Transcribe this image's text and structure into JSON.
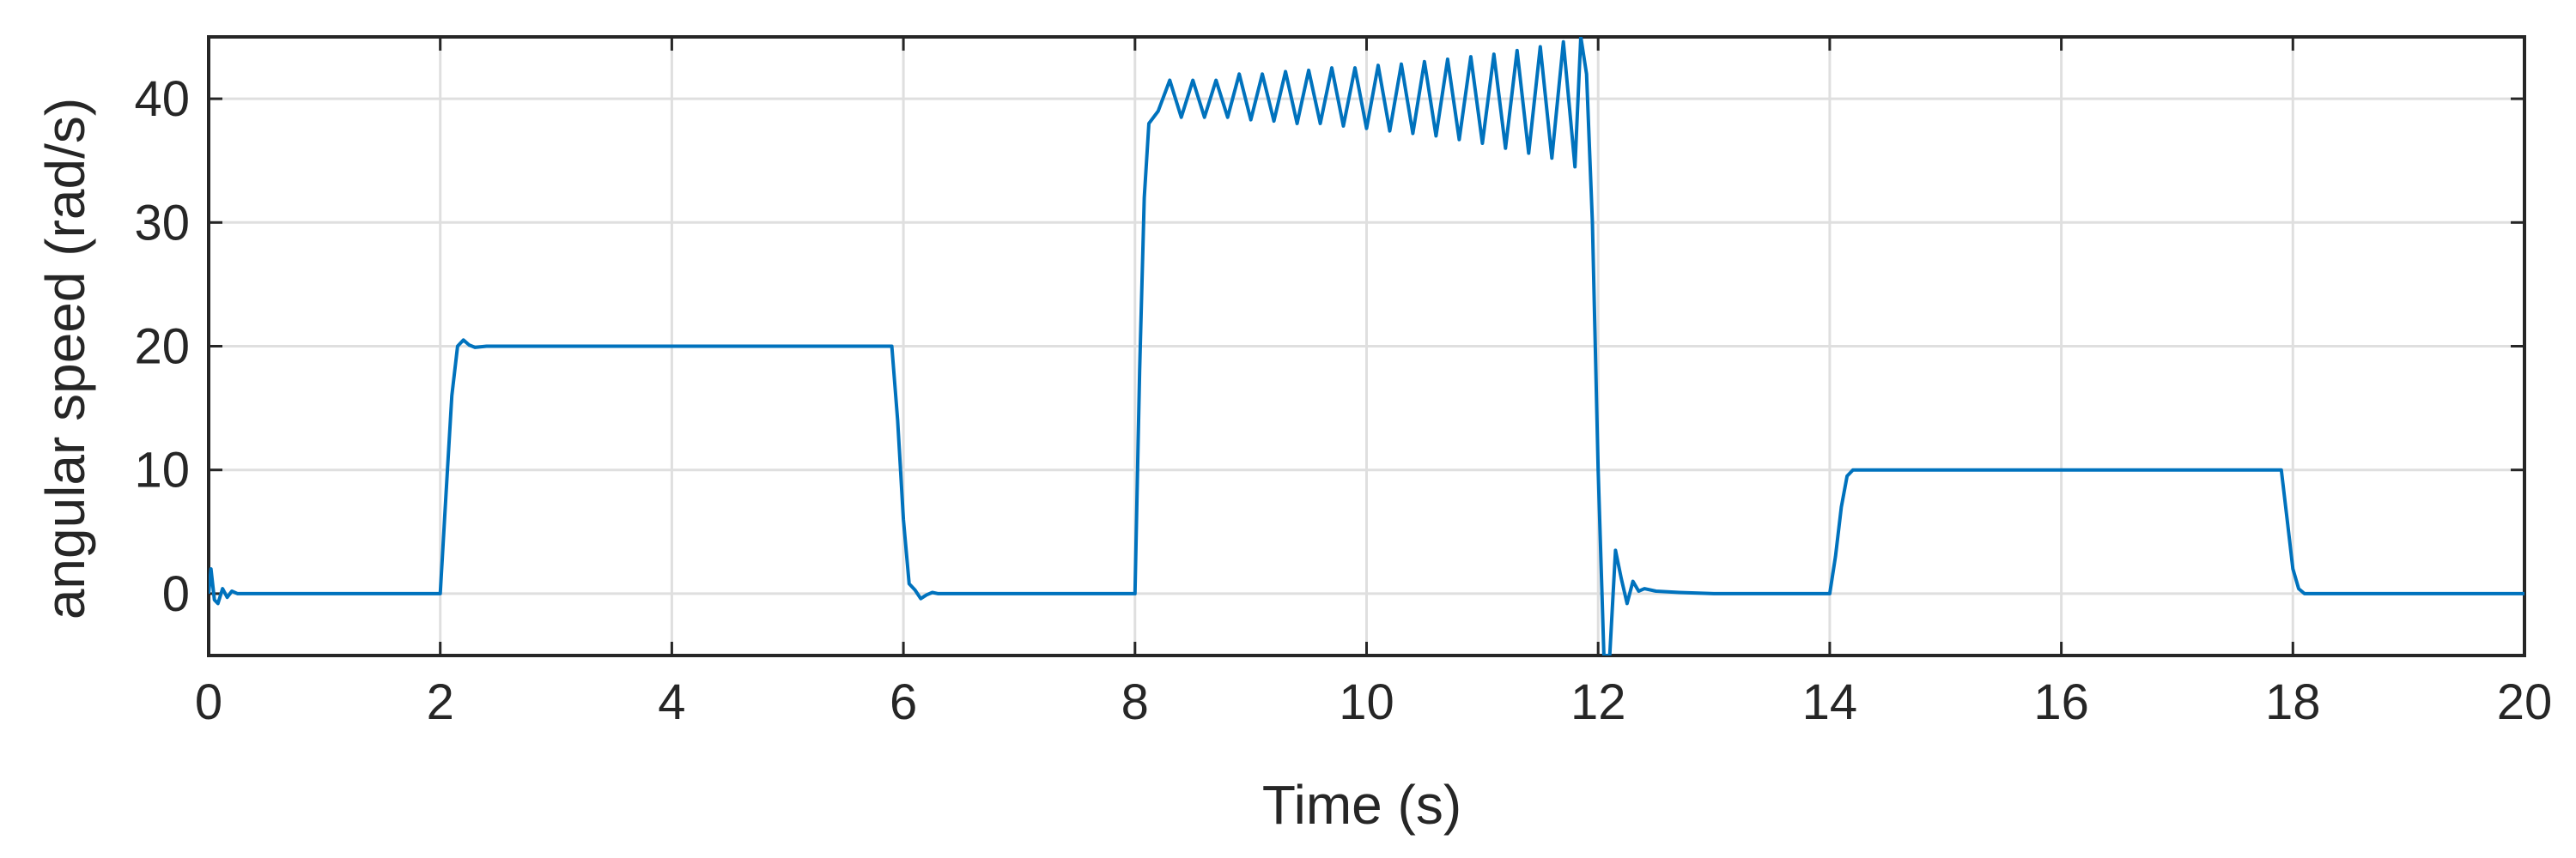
{
  "chart_data": {
    "type": "line",
    "title": "",
    "xlabel": "Time (s)",
    "ylabel": "angular speed (rad/s)",
    "xlim": [
      0,
      20
    ],
    "ylim": [
      -5,
      45
    ],
    "xticks": [
      0,
      2,
      4,
      6,
      8,
      10,
      12,
      14,
      16,
      18,
      20
    ],
    "yticks": [
      0,
      10,
      20,
      30,
      40
    ],
    "xtick_labels": [
      "0",
      "2",
      "4",
      "6",
      "8",
      "10",
      "12",
      "14",
      "16",
      "18",
      "20"
    ],
    "ytick_labels": [
      "0",
      "10",
      "20",
      "30",
      "40"
    ],
    "grid": true,
    "box": true,
    "series": [
      {
        "color": "#0072BD",
        "x": [
          0,
          0.02,
          0.05,
          0.08,
          0.12,
          0.16,
          0.2,
          0.25,
          0.3,
          0.4,
          0.6,
          1.0,
          1.5,
          2.0,
          2.05,
          2.1,
          2.15,
          2.2,
          2.25,
          2.3,
          2.4,
          2.6,
          3.0,
          4.0,
          5.0,
          5.9,
          5.95,
          6.0,
          6.05,
          6.1,
          6.15,
          6.2,
          6.25,
          6.3,
          6.4,
          6.6,
          7.0,
          7.5,
          8.0,
          8.04,
          8.08,
          8.12,
          8.2,
          8.3,
          8.4,
          8.5,
          8.6,
          8.7,
          8.8,
          8.9,
          9.0,
          9.1,
          9.2,
          9.3,
          9.4,
          9.5,
          9.6,
          9.7,
          9.8,
          9.9,
          10.0,
          10.1,
          10.2,
          10.3,
          10.4,
          10.5,
          10.6,
          10.7,
          10.8,
          10.9,
          11.0,
          11.1,
          11.2,
          11.3,
          11.4,
          11.5,
          11.6,
          11.7,
          11.8,
          11.85,
          11.9,
          11.95,
          12.0,
          12.05,
          12.1,
          12.15,
          12.2,
          12.25,
          12.3,
          12.35,
          12.4,
          12.5,
          12.7,
          13.0,
          13.5,
          14.0,
          14.05,
          14.1,
          14.15,
          14.2,
          14.3,
          14.5,
          15.0,
          16.0,
          17.0,
          17.9,
          17.95,
          18.0,
          18.05,
          18.1,
          18.2,
          18.3,
          18.5,
          19.0,
          20.0
        ],
        "y": [
          0,
          2,
          -0.5,
          -0.8,
          0.4,
          -0.3,
          0.2,
          0,
          0,
          0,
          0,
          0,
          0,
          0,
          8,
          16,
          20,
          20.5,
          20.1,
          19.9,
          20,
          20,
          20,
          20,
          20,
          20,
          14,
          6,
          0.8,
          0.3,
          -0.4,
          -0.1,
          0.1,
          0,
          0,
          0,
          0,
          0,
          0,
          18,
          32,
          38,
          39,
          41.5,
          38.5,
          41.5,
          38.5,
          41.5,
          38.5,
          42,
          38.3,
          42,
          38.2,
          42.2,
          38,
          42.3,
          38,
          42.5,
          37.8,
          42.5,
          37.6,
          42.7,
          37.4,
          42.8,
          37.2,
          43,
          37,
          43.2,
          36.7,
          43.4,
          36.4,
          43.6,
          36,
          43.9,
          35.6,
          44.2,
          35.2,
          44.6,
          34.5,
          45,
          42,
          30,
          10,
          -5,
          -5,
          3.5,
          1.2,
          -0.8,
          1.0,
          0.2,
          0.4,
          0.2,
          0.1,
          0,
          0,
          0,
          3,
          7,
          9.5,
          10,
          10,
          10,
          10,
          10,
          10,
          10,
          6,
          2,
          0.4,
          0,
          0,
          0,
          0,
          0,
          0
        ]
      }
    ]
  }
}
